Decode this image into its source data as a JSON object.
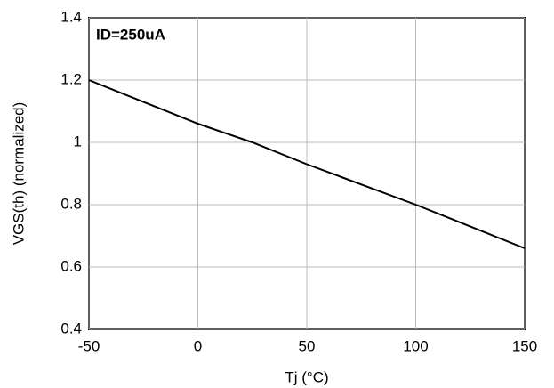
{
  "chart_data": {
    "type": "line",
    "x": [
      -50,
      0,
      25,
      50,
      100,
      150
    ],
    "series": [
      {
        "color": "#000000",
        "values": [
          1.2,
          1.06,
          1.0,
          0.93,
          0.8,
          0.66
        ]
      }
    ],
    "xlim": [
      -50,
      150
    ],
    "xticks": [
      -50,
      0,
      50,
      100,
      150
    ],
    "ylim": [
      0.4,
      1.4
    ],
    "yticks": [
      0.4,
      0.6,
      0.8,
      1.0,
      1.2,
      1.4
    ],
    "grid": true,
    "annotation": "ID=250uA",
    "xlabel": "Tj (°C)",
    "ylabel": "VGS(th) (normalized)"
  }
}
